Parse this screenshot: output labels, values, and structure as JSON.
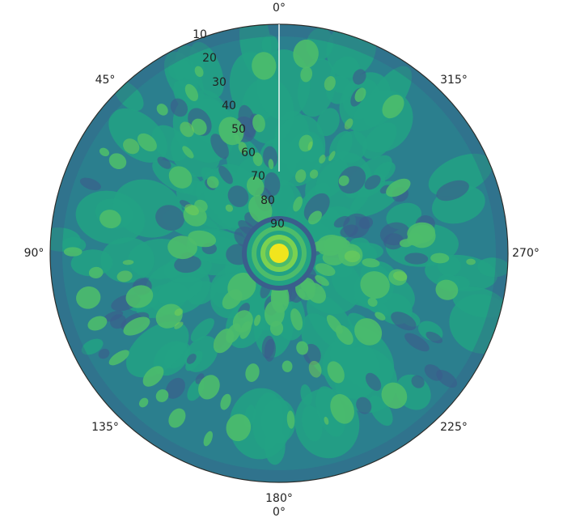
{
  "chart_data": {
    "type": "heatmap",
    "projection": "polar",
    "theta_direction": "counterclockwise",
    "theta_zero_location": "top",
    "colormap": "viridis",
    "grid": false,
    "angle_tick_labels": [
      "0°",
      "45°",
      "90°",
      "135°",
      "180°",
      "225°",
      "270°",
      "315°"
    ],
    "radial_tick_labels": [
      "10",
      "20",
      "30",
      "40",
      "50",
      "60",
      "70",
      "80",
      "90"
    ],
    "radial_range": [
      90,
      0
    ],
    "extra_bottom_label": "0°",
    "colors": {
      "background": "#2b7f8e",
      "deep": "#3a5e8c",
      "mid": "#22a284",
      "light": "#4cbc6b",
      "bright": "#7ad151",
      "peak": "#f1e51d",
      "ring": "#2c2c2c",
      "needle": "#ffffff"
    }
  }
}
